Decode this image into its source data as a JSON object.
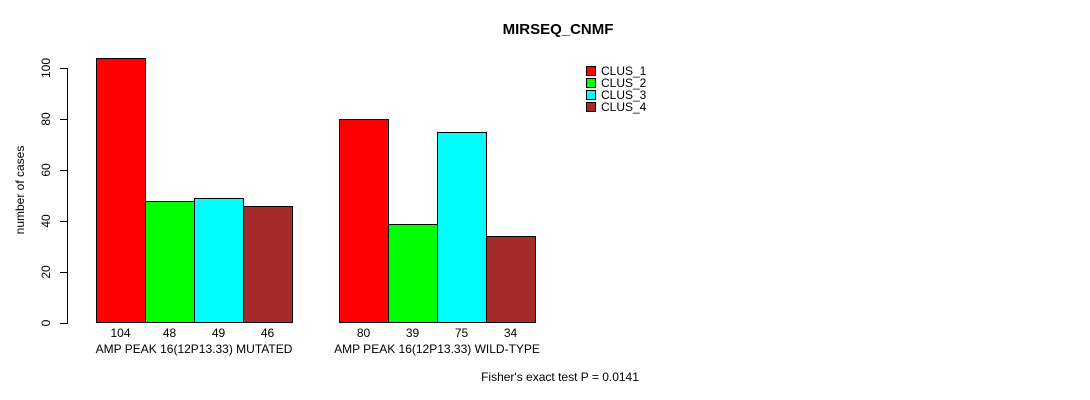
{
  "chart_data": {
    "type": "bar",
    "title": "MIRSEQ_CNMF",
    "xlabel": "",
    "ylabel": "number of cases",
    "ylim": [
      0,
      100
    ],
    "yticks": [
      0,
      20,
      40,
      60,
      80,
      100
    ],
    "grid": false,
    "legend_position": "top-right",
    "categories": [
      "AMP PEAK 16(12P13.33) MUTATED",
      "AMP PEAK 16(12P13.33) WILD-TYPE"
    ],
    "series": [
      {
        "name": "CLUS_1",
        "color": "#FF0000",
        "values": [
          104,
          80
        ]
      },
      {
        "name": "CLUS_2",
        "color": "#00FF00",
        "values": [
          48,
          39
        ]
      },
      {
        "name": "CLUS_3",
        "color": "#00FFFF",
        "values": [
          49,
          75
        ]
      },
      {
        "name": "CLUS_4",
        "color": "#A52A2A",
        "values": [
          46,
          34
        ]
      }
    ],
    "bar_value_labels": [
      [
        104,
        48,
        49,
        46
      ],
      [
        80,
        39,
        75,
        34
      ]
    ],
    "footer": "Fisher's exact test P = 0.0141",
    "text_color": "#000000",
    "background_color": "#FFFFFF"
  }
}
